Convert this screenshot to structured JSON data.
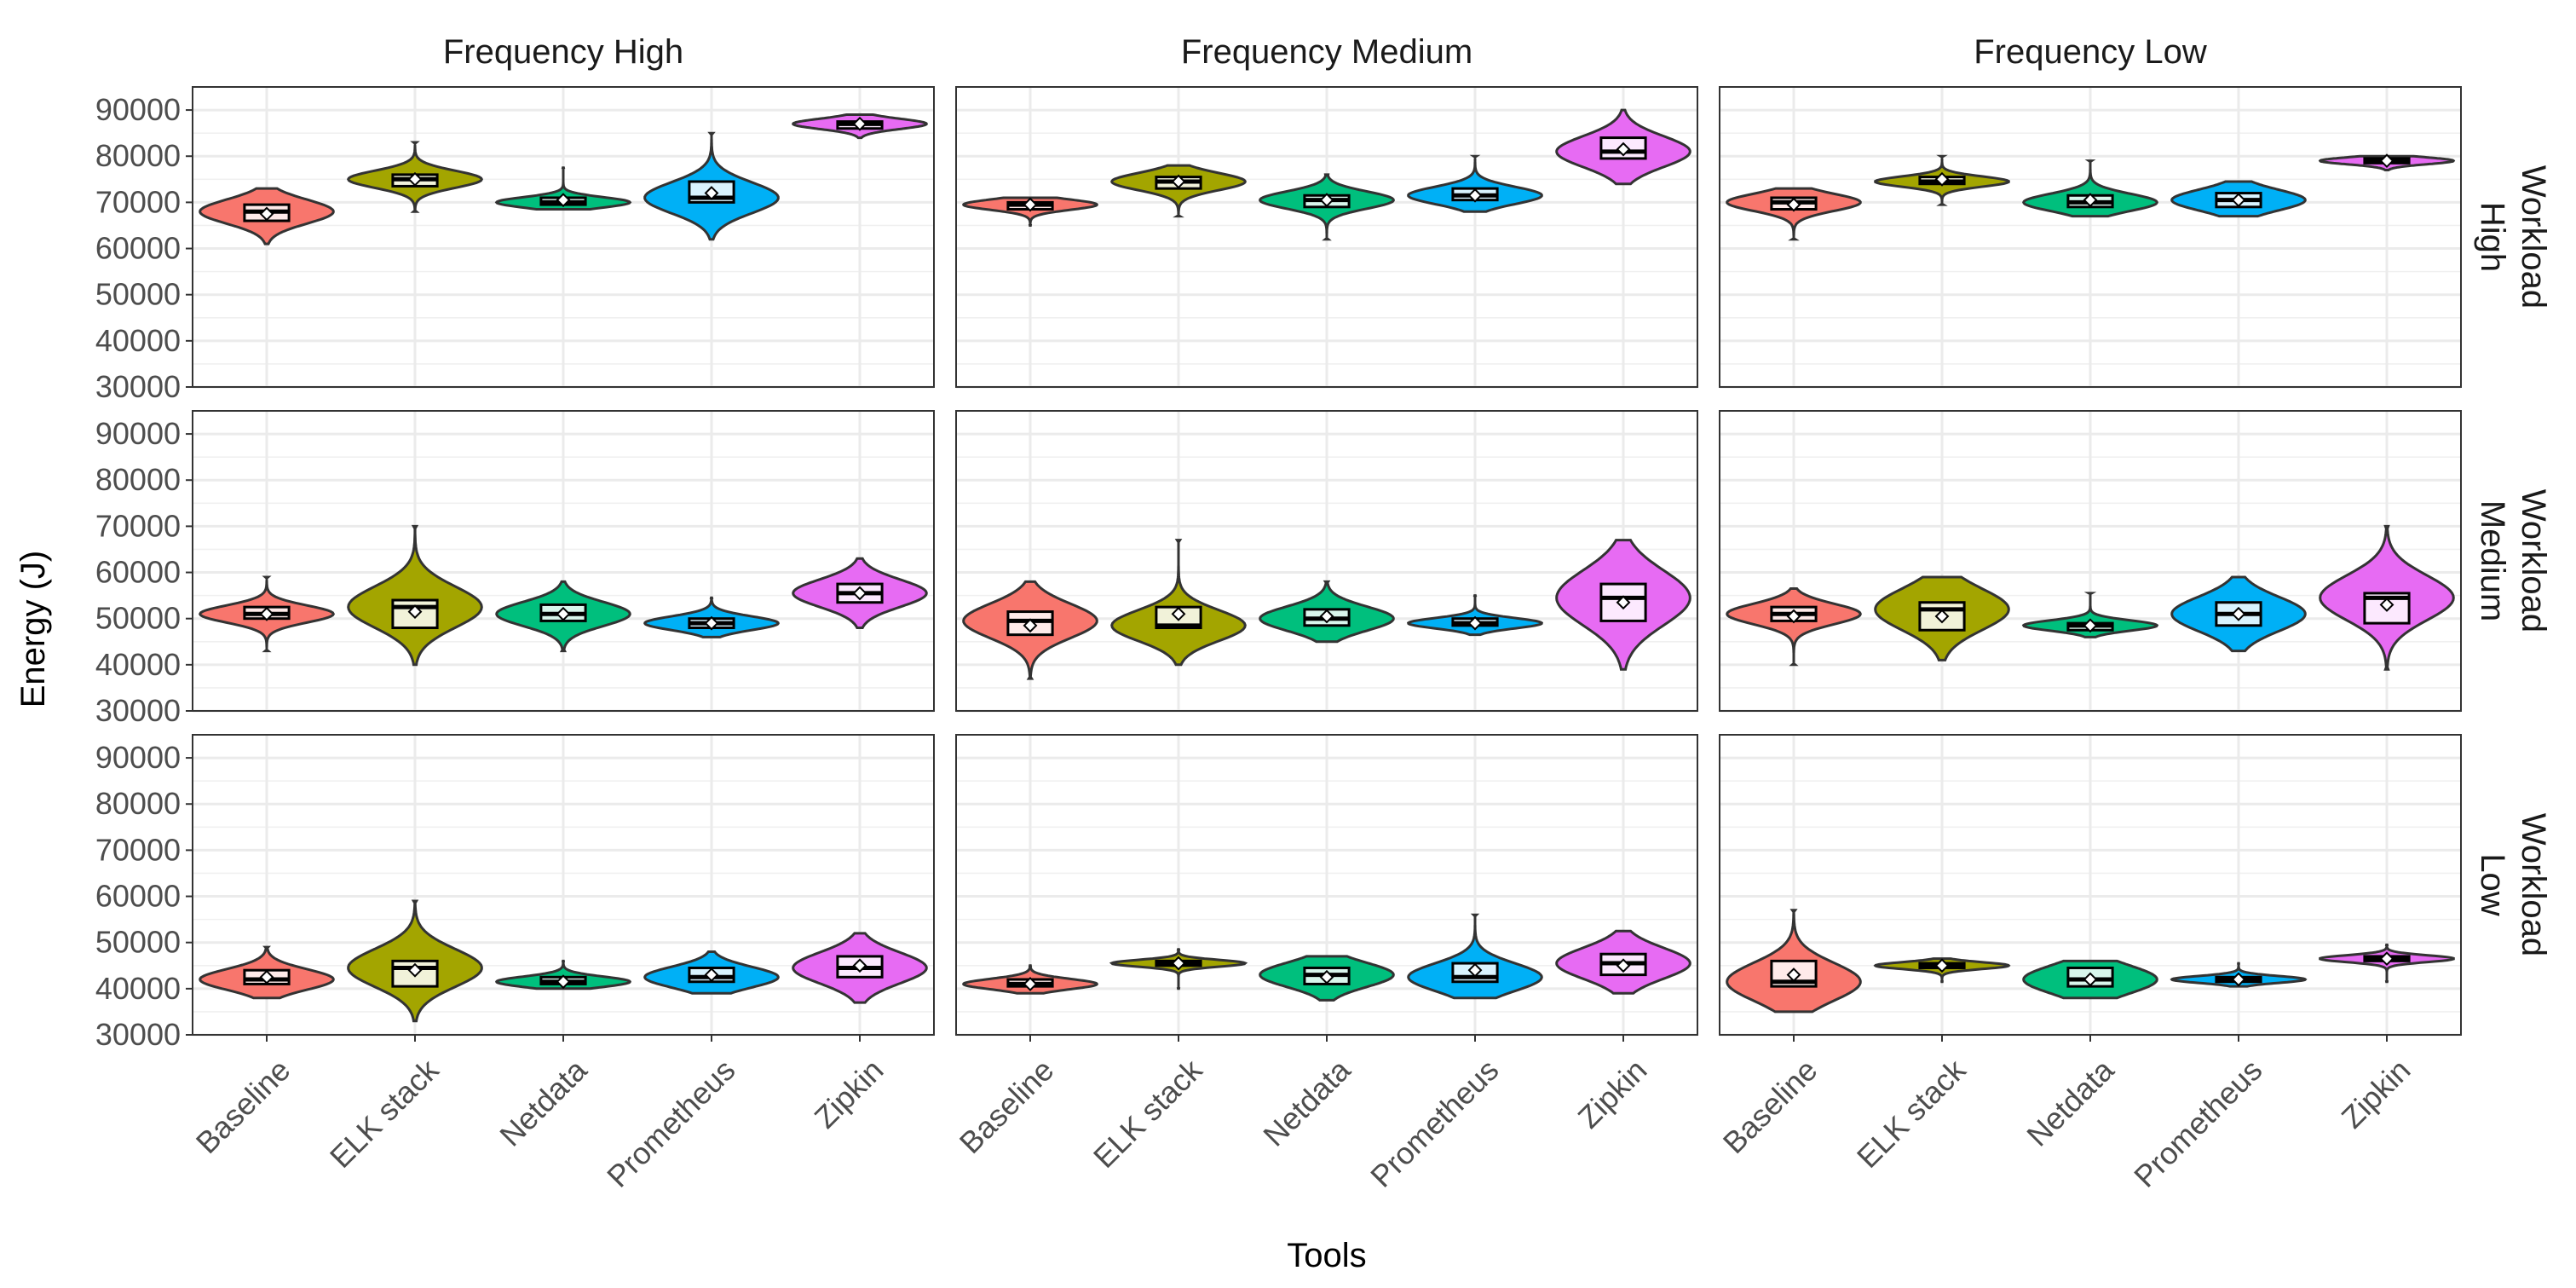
{
  "chart_data": {
    "type": "violin",
    "xlabel": "Tools",
    "ylabel": "Energy (J)",
    "ylim": [
      30000,
      95000
    ],
    "y_ticks": [
      "30000",
      "40000",
      "50000",
      "60000",
      "70000",
      "80000",
      "90000"
    ],
    "categories": [
      "Baseline",
      "ELK stack",
      "Netdata",
      "Prometheus",
      "Zipkin"
    ],
    "colors": {
      "Baseline": "#F8766D",
      "ELK stack": "#A3A500",
      "Netdata": "#00BF7D",
      "Prometheus": "#00B0F6",
      "Zipkin": "#E76BF3"
    },
    "grid": true,
    "legend": "none",
    "column_facets": [
      "Frequency High",
      "Frequency Medium",
      "Frequency Low"
    ],
    "row_facets": [
      [
        "Workload",
        "High"
      ],
      [
        "Workload",
        "Medium"
      ],
      [
        "Workload",
        "Low"
      ]
    ],
    "panels": [
      [
        [
          {
            "min": 61000,
            "q1": 66000,
            "median": 68000,
            "q3": 69500,
            "max": 73000,
            "mean": 67500
          },
          {
            "min": 68000,
            "q1": 73500,
            "median": 75000,
            "q3": 76000,
            "max": 83000,
            "mean": 75000
          },
          {
            "min": 68500,
            "q1": 69500,
            "median": 70000,
            "q3": 71000,
            "max": 77500,
            "mean": 70500
          },
          {
            "min": 62000,
            "q1": 70000,
            "median": 71000,
            "q3": 74500,
            "max": 85000,
            "mean": 72000
          },
          {
            "min": 84000,
            "q1": 86000,
            "median": 87000,
            "q3": 87500,
            "max": 89000,
            "mean": 87000
          }
        ],
        [
          {
            "min": 65000,
            "q1": 68500,
            "median": 69500,
            "q3": 70000,
            "max": 71000,
            "mean": 69500
          },
          {
            "min": 67000,
            "q1": 73000,
            "median": 74500,
            "q3": 75500,
            "max": 78000,
            "mean": 74500
          },
          {
            "min": 62000,
            "q1": 69000,
            "median": 70500,
            "q3": 71500,
            "max": 76000,
            "mean": 70500
          },
          {
            "min": 68000,
            "q1": 70500,
            "median": 71500,
            "q3": 73000,
            "max": 80000,
            "mean": 71500
          },
          {
            "min": 74000,
            "q1": 79500,
            "median": 81000,
            "q3": 84000,
            "max": 90000,
            "mean": 81500
          }
        ],
        [
          {
            "min": 62000,
            "q1": 68500,
            "median": 70000,
            "q3": 71000,
            "max": 73000,
            "mean": 69500
          },
          {
            "min": 69500,
            "q1": 74000,
            "median": 74500,
            "q3": 75500,
            "max": 80000,
            "mean": 75000
          },
          {
            "min": 67000,
            "q1": 69000,
            "median": 70000,
            "q3": 71500,
            "max": 79000,
            "mean": 70500
          },
          {
            "min": 67000,
            "q1": 69000,
            "median": 70500,
            "q3": 72000,
            "max": 74500,
            "mean": 70500
          },
          {
            "min": 77000,
            "q1": 78500,
            "median": 79000,
            "q3": 79500,
            "max": 80000,
            "mean": 79000
          }
        ]
      ],
      [
        [
          {
            "min": 43000,
            "q1": 50000,
            "median": 51000,
            "q3": 52500,
            "max": 59000,
            "mean": 51000
          },
          {
            "min": 40000,
            "q1": 48000,
            "median": 52500,
            "q3": 54000,
            "max": 70000,
            "mean": 51500
          },
          {
            "min": 43000,
            "q1": 49500,
            "median": 51000,
            "q3": 53000,
            "max": 58000,
            "mean": 51000
          },
          {
            "min": 46000,
            "q1": 48000,
            "median": 49000,
            "q3": 50000,
            "max": 54500,
            "mean": 49000
          },
          {
            "min": 48000,
            "q1": 53500,
            "median": 55500,
            "q3": 57500,
            "max": 63000,
            "mean": 55500
          }
        ],
        [
          {
            "min": 37000,
            "q1": 46500,
            "median": 49500,
            "q3": 51500,
            "max": 58000,
            "mean": 48500
          },
          {
            "min": 40000,
            "q1": 48000,
            "median": 48500,
            "q3": 52500,
            "max": 67000,
            "mean": 51000
          },
          {
            "min": 45000,
            "q1": 48500,
            "median": 50000,
            "q3": 52000,
            "max": 58000,
            "mean": 50500
          },
          {
            "min": 46500,
            "q1": 48500,
            "median": 49000,
            "q3": 50000,
            "max": 55000,
            "mean": 49000
          },
          {
            "min": 39000,
            "q1": 49500,
            "median": 54500,
            "q3": 57500,
            "max": 67000,
            "mean": 53500
          }
        ],
        [
          {
            "min": 40000,
            "q1": 49500,
            "median": 51000,
            "q3": 52500,
            "max": 56500,
            "mean": 50500
          },
          {
            "min": 41000,
            "q1": 47500,
            "median": 52000,
            "q3": 53500,
            "max": 59000,
            "mean": 50500
          },
          {
            "min": 46000,
            "q1": 47500,
            "median": 48500,
            "q3": 49000,
            "max": 55500,
            "mean": 48500
          },
          {
            "min": 43000,
            "q1": 48500,
            "median": 51000,
            "q3": 53500,
            "max": 59000,
            "mean": 51000
          },
          {
            "min": 39000,
            "q1": 49000,
            "median": 54500,
            "q3": 55500,
            "max": 70000,
            "mean": 53000
          }
        ]
      ],
      [
        [
          {
            "min": 38000,
            "q1": 41000,
            "median": 42000,
            "q3": 44000,
            "max": 49000,
            "mean": 42500
          },
          {
            "min": 33000,
            "q1": 40500,
            "median": 44500,
            "q3": 46000,
            "max": 59000,
            "mean": 44000
          },
          {
            "min": 40000,
            "q1": 41000,
            "median": 41500,
            "q3": 42500,
            "max": 46000,
            "mean": 41500
          },
          {
            "min": 39000,
            "q1": 41500,
            "median": 42500,
            "q3": 44500,
            "max": 48000,
            "mean": 43000
          },
          {
            "min": 37000,
            "q1": 42500,
            "median": 44500,
            "q3": 47000,
            "max": 52000,
            "mean": 45000
          }
        ],
        [
          {
            "min": 39000,
            "q1": 40500,
            "median": 41000,
            "q3": 42000,
            "max": 45000,
            "mean": 41000
          },
          {
            "min": 40000,
            "q1": 45000,
            "median": 45500,
            "q3": 46000,
            "max": 48500,
            "mean": 45500
          },
          {
            "min": 37500,
            "q1": 41000,
            "median": 43000,
            "q3": 44500,
            "max": 47000,
            "mean": 42500
          },
          {
            "min": 38000,
            "q1": 41500,
            "median": 42500,
            "q3": 45500,
            "max": 56000,
            "mean": 44000
          },
          {
            "min": 39000,
            "q1": 43000,
            "median": 45500,
            "q3": 47500,
            "max": 52500,
            "mean": 45000
          }
        ],
        [
          {
            "min": 35000,
            "q1": 40500,
            "median": 41500,
            "q3": 46000,
            "max": 57000,
            "mean": 43000
          },
          {
            "min": 41500,
            "q1": 44500,
            "median": 45000,
            "q3": 45500,
            "max": 46500,
            "mean": 45000
          },
          {
            "min": 38000,
            "q1": 40500,
            "median": 42000,
            "q3": 44500,
            "max": 46000,
            "mean": 42000
          },
          {
            "min": 40500,
            "q1": 41500,
            "median": 42000,
            "q3": 42500,
            "max": 45500,
            "mean": 42000
          },
          {
            "min": 41500,
            "q1": 46000,
            "median": 46500,
            "q3": 47000,
            "max": 49500,
            "mean": 46500
          }
        ]
      ]
    ]
  }
}
